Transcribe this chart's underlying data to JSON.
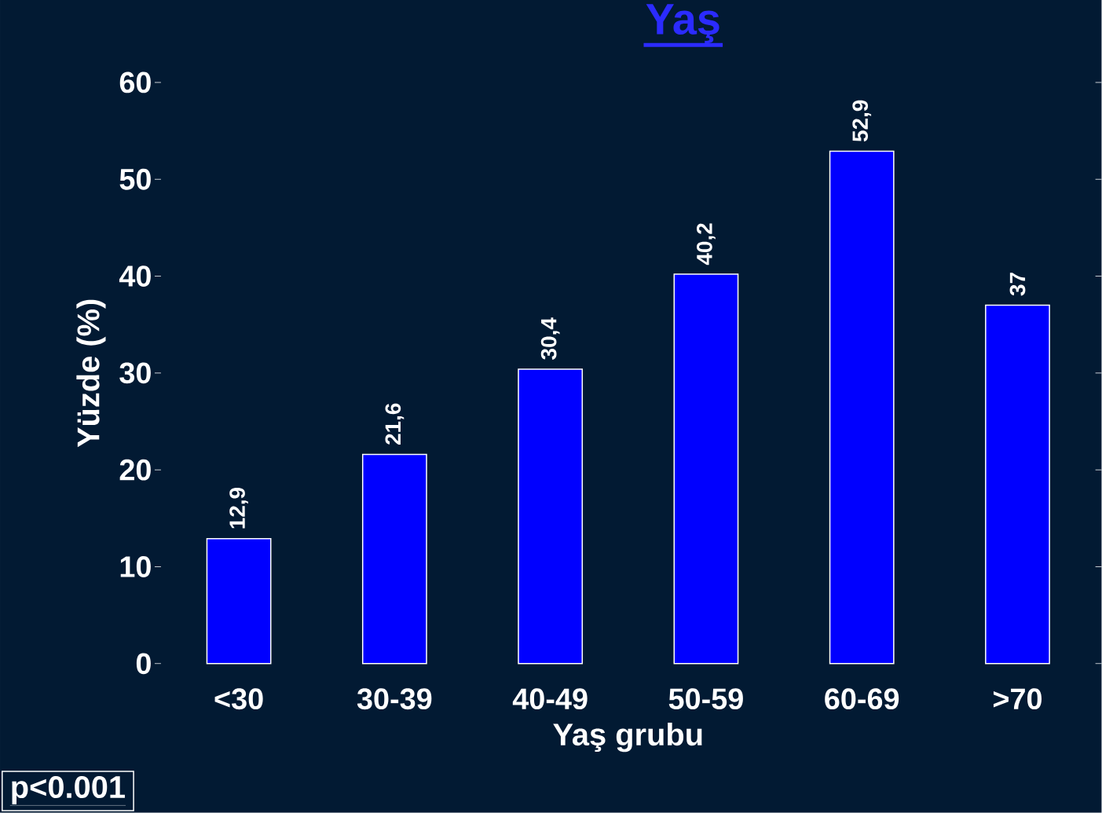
{
  "chart_data": {
    "type": "bar",
    "title": "Yaş",
    "xlabel": "Yaş grubu",
    "ylabel": "Yüzde (%)",
    "categories": [
      "<30",
      "30-39",
      "40-49",
      "50-59",
      "60-69",
      ">70"
    ],
    "values": [
      12.9,
      21.6,
      30.4,
      40.2,
      52.9,
      37
    ],
    "value_labels": [
      "12,9",
      "21,6",
      "30,4",
      "40,2",
      "52,9",
      "37"
    ],
    "color": "#0000ff",
    "ylim": [
      0,
      60
    ],
    "yticks": [
      0,
      10,
      20,
      30,
      40,
      50,
      60
    ],
    "annotations": [
      "p<0.001"
    ]
  }
}
